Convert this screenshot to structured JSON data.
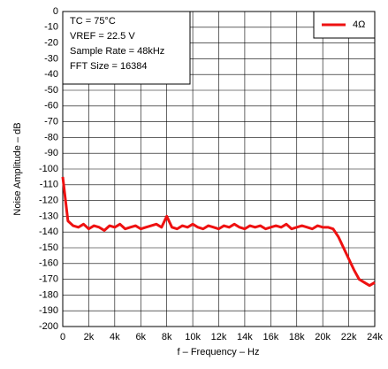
{
  "chart_data": {
    "type": "line",
    "xlabel": "f – Frequency – Hz",
    "ylabel": "Noise Amplitude – dB",
    "annotations": [
      "TC = 75°C",
      "VREF = 22.5 V",
      "Sample Rate = 48kHz",
      "FFT Size = 16384"
    ],
    "x": [
      0,
      400,
      800,
      1200,
      1600,
      2000,
      2400,
      2800,
      3200,
      3600,
      4000,
      4400,
      4800,
      5200,
      5600,
      6000,
      6400,
      6800,
      7200,
      7600,
      8000,
      8400,
      8800,
      9200,
      9600,
      10000,
      10400,
      10800,
      11200,
      11600,
      12000,
      12400,
      12800,
      13200,
      13600,
      14000,
      14400,
      14800,
      15200,
      15600,
      16000,
      16400,
      16800,
      17200,
      17600,
      18000,
      18400,
      18800,
      19200,
      19600,
      20000,
      20400,
      20800,
      21200,
      21600,
      22000,
      22400,
      22800,
      23200,
      23600,
      24000
    ],
    "series": [
      {
        "name": "4Ω",
        "color": "#ee1111",
        "values": [
          -105,
          -133,
          -136,
          -137,
          -135,
          -138,
          -136,
          -137,
          -139,
          -136,
          -137,
          -135,
          -138,
          -137,
          -136,
          -138,
          -137,
          -136,
          -135,
          -137,
          -130,
          -137,
          -138,
          -136,
          -137,
          -135,
          -137,
          -138,
          -136,
          -137,
          -138,
          -136,
          -137,
          -135,
          -137,
          -138,
          -136,
          -137,
          -136,
          -138,
          -137,
          -136,
          -137,
          -135,
          -138,
          -137,
          -136,
          -137,
          -138,
          -136,
          -137,
          -137,
          -138,
          -143,
          -150,
          -157,
          -164,
          -170,
          -172,
          -174,
          -172
        ]
      }
    ],
    "xlim": [
      0,
      24000
    ],
    "xticks": [
      0,
      {
        "value": 2000,
        "label": "2k"
      },
      {
        "value": 4000,
        "label": "4k"
      },
      {
        "value": 6000,
        "label": "6k"
      },
      {
        "value": 8000,
        "label": "8k"
      },
      {
        "value": 10000,
        "label": "10k"
      },
      {
        "value": 12000,
        "label": "12k"
      },
      {
        "value": 14000,
        "label": "14k"
      },
      {
        "value": 16000,
        "label": "16k"
      },
      {
        "value": 18000,
        "label": "18k"
      },
      {
        "value": 20000,
        "label": "20k"
      },
      {
        "value": 22000,
        "label": "22k"
      },
      {
        "value": 24000,
        "label": "24k"
      }
    ],
    "ylim": [
      -200,
      0
    ],
    "yticks": [
      0,
      -10,
      -20,
      -30,
      -40,
      -50,
      -60,
      -70,
      -80,
      -90,
      -100,
      -110,
      -120,
      -130,
      -140,
      -150,
      -160,
      -170,
      -180,
      -190,
      -200
    ],
    "grid": true,
    "legend": "upper right"
  }
}
